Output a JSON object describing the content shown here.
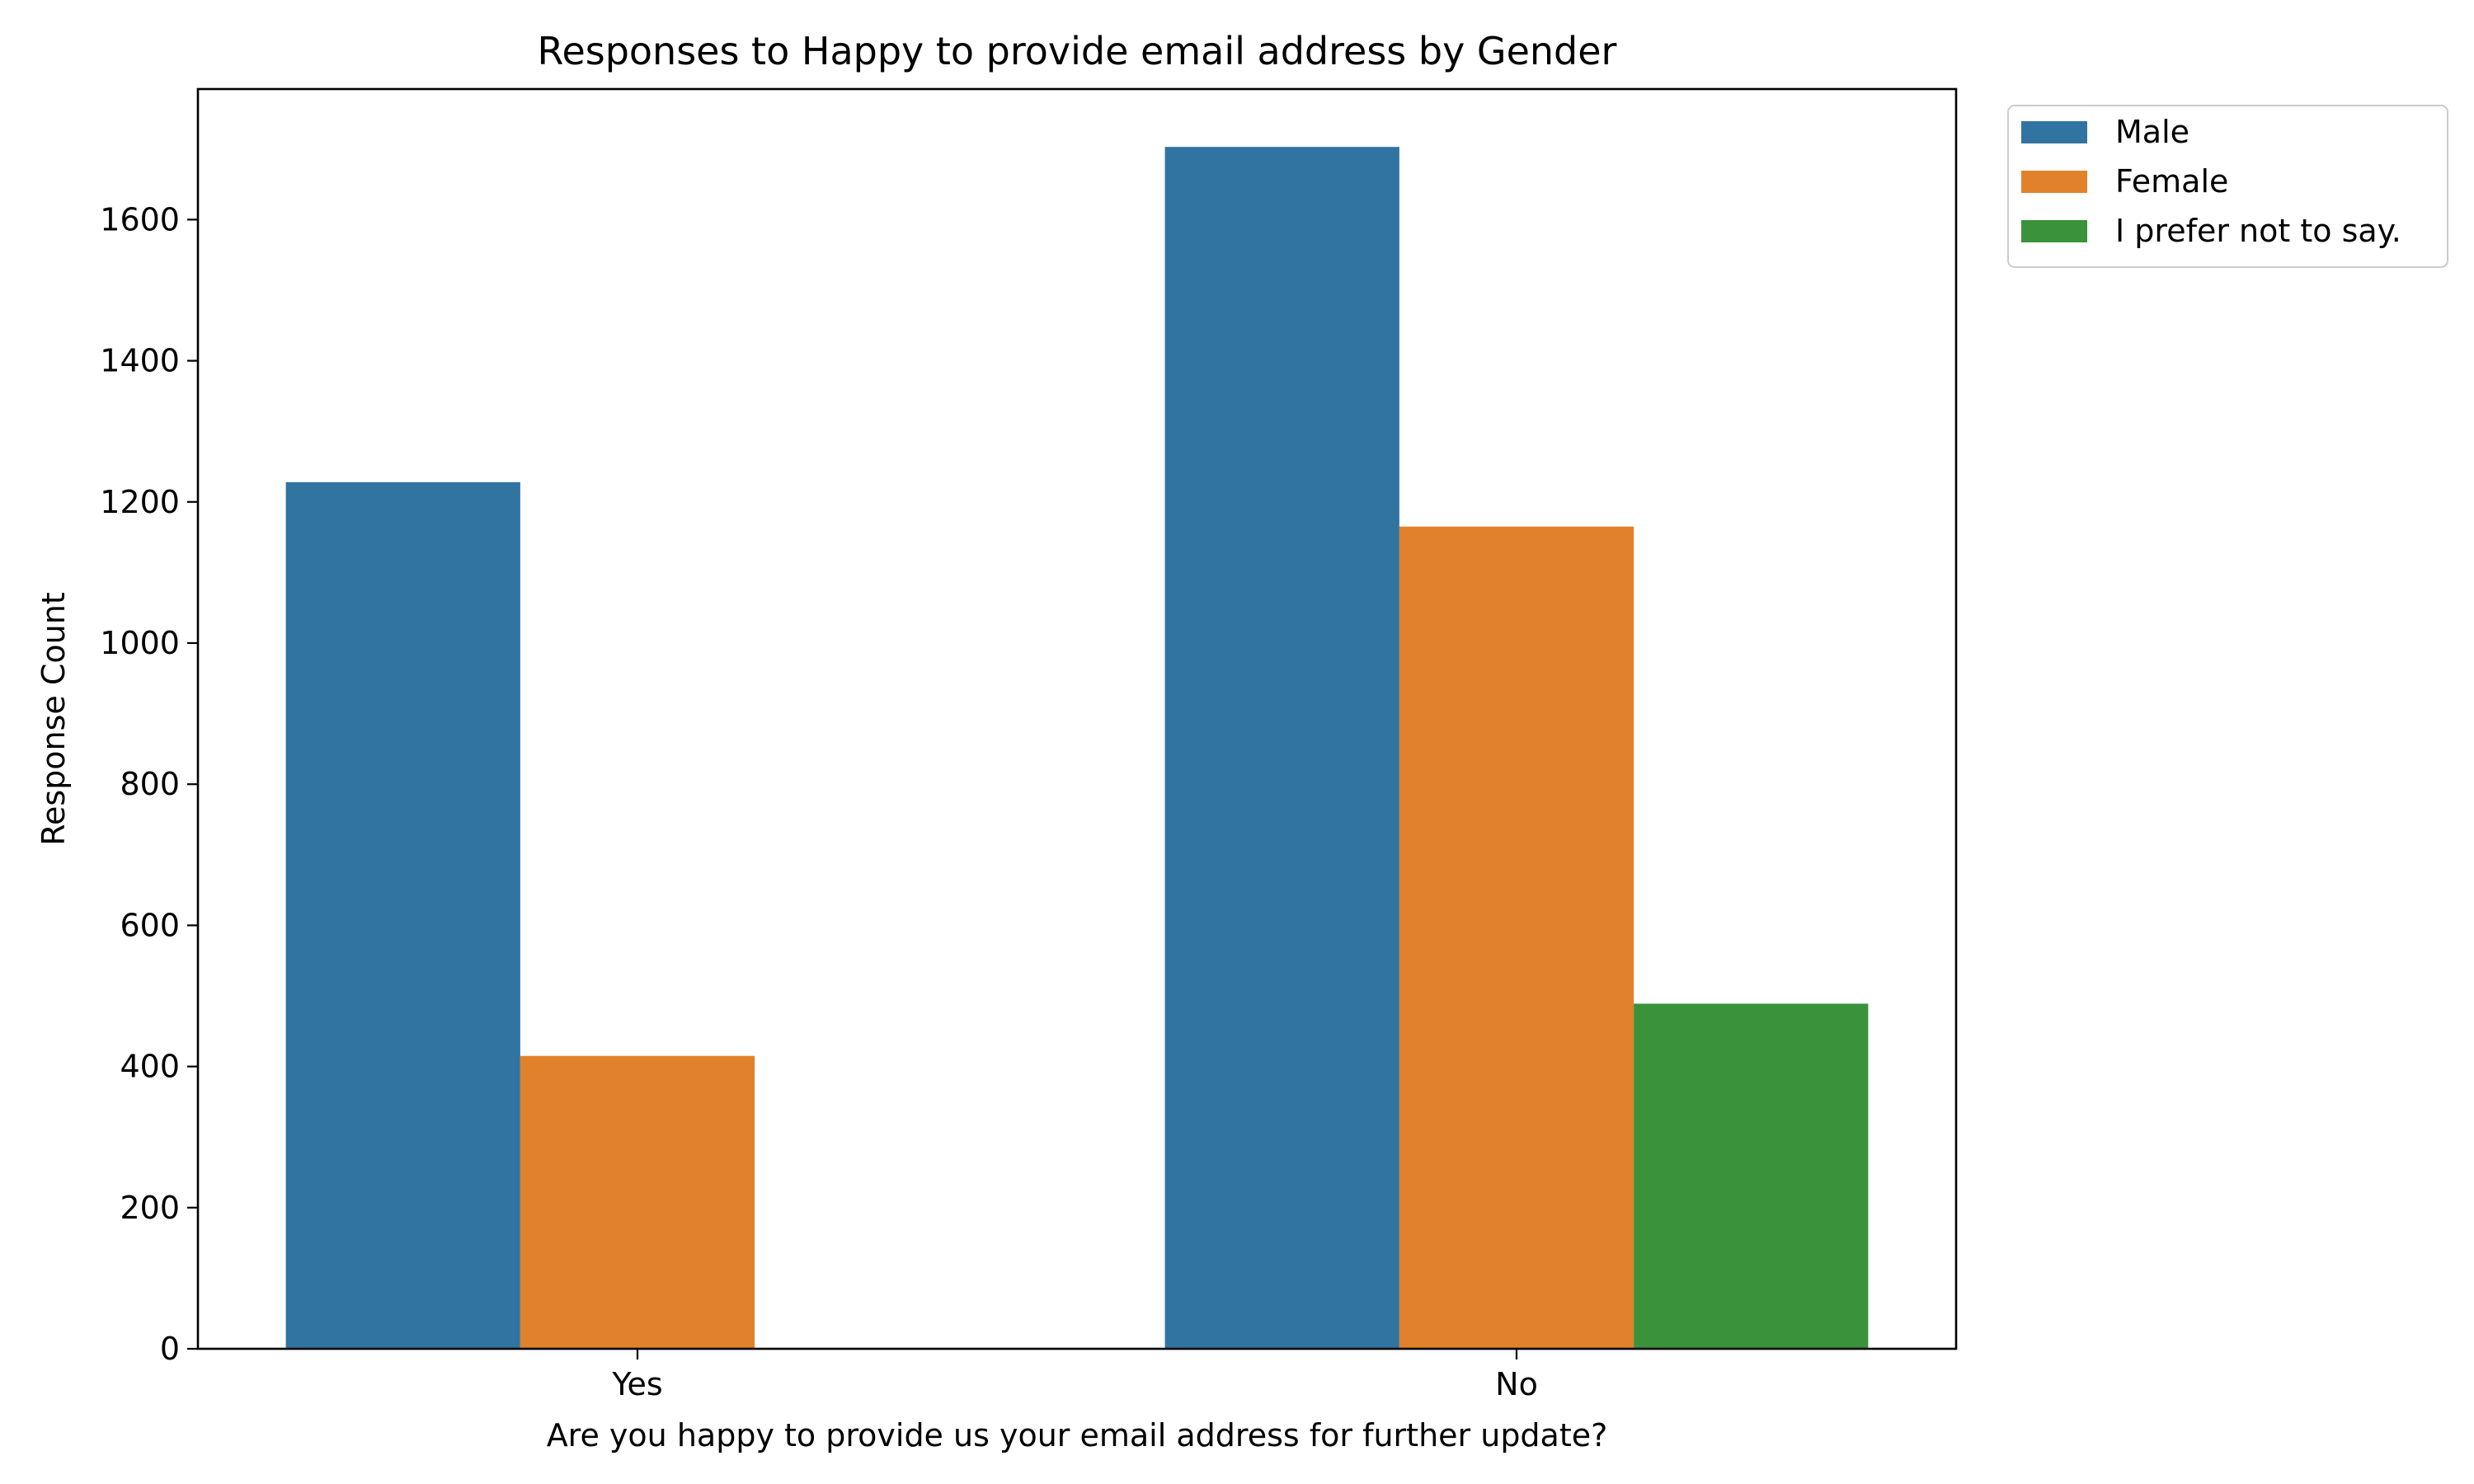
{
  "chart_data": {
    "type": "bar",
    "title": "Responses to Happy to provide email address by Gender",
    "xlabel": "Are you happy to provide us your email address for further update?",
    "ylabel": "Response Count",
    "categories": [
      "Yes",
      "No"
    ],
    "ylim": [
      0,
      1785
    ],
    "yticks": [
      0,
      200,
      400,
      600,
      800,
      1000,
      1200,
      1400,
      1600
    ],
    "grid": false,
    "legend_position": "outside-top-right",
    "series": [
      {
        "name": "Male",
        "color": "#3274a1",
        "values": [
          1228,
          1703
        ]
      },
      {
        "name": "Female",
        "color": "#e1812c",
        "values": [
          415,
          1165
        ]
      },
      {
        "name": "I prefer not to say.",
        "color": "#3a923a",
        "values": [
          0,
          489
        ]
      }
    ]
  }
}
